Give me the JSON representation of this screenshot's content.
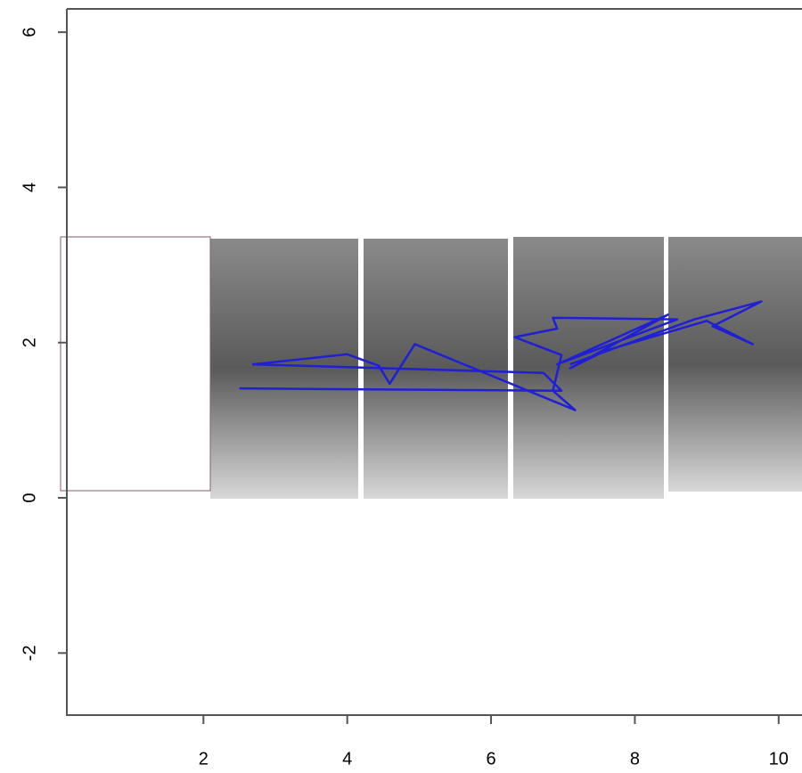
{
  "chart_data": {
    "type": "line",
    "x": [
      2.5,
      6.98,
      6.73,
      2.69,
      4.0,
      4.44,
      4.59,
      4.94,
      7.17,
      6.86,
      6.98,
      6.33,
      6.92,
      6.86,
      8.59,
      6.92,
      8.46,
      7.1,
      7.6,
      9.0,
      9.64,
      9.08,
      9.76,
      8.83,
      7.1
    ],
    "values": [
      1.41,
      1.38,
      1.61,
      1.72,
      1.85,
      1.7,
      1.47,
      1.98,
      1.13,
      1.38,
      1.84,
      2.07,
      2.18,
      2.32,
      2.3,
      1.72,
      2.36,
      1.67,
      1.9,
      2.28,
      1.98,
      2.21,
      2.53,
      2.3,
      1.72
    ],
    "color": "#1f1fd6",
    "xlim": [
      0.1,
      10.3
    ],
    "ylim": [
      -2.8,
      6.3
    ],
    "xticks": [
      2,
      4,
      6,
      8,
      10
    ],
    "yticks": [
      -2,
      0,
      2,
      4,
      6
    ]
  }
}
